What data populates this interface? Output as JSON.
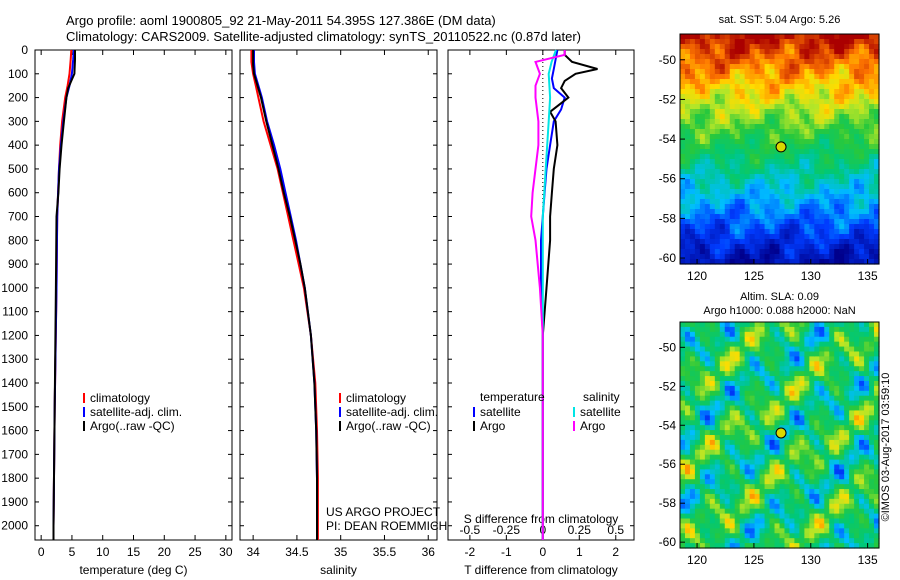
{
  "header": {
    "line1": "Argo profile: aoml 1900805_92 21-May-2011 54.395S 127.386E (DM data)",
    "line2": "Climatology: CARS2009. Satellite-adjusted climatology: synTS_20110522.nc (0.87d later)"
  },
  "colors": {
    "climatology": "#ff0000",
    "satellite": "#0000ff",
    "argo": "#000000",
    "sat_salinity": "#00e5e5",
    "argo_salinity": "#ff00ff"
  },
  "chart_data": [
    {
      "type": "line",
      "xlabel": "temperature (deg C)",
      "ylabel": "",
      "xlim": [
        -1,
        31
      ],
      "ylim": [
        2060,
        0
      ],
      "xticks": [
        "0",
        "5",
        "10",
        "15",
        "20",
        "25",
        "30"
      ],
      "xtick_values": [
        0,
        5,
        10,
        15,
        20,
        25,
        30
      ],
      "yticks": [
        "0",
        "100",
        "200",
        "300",
        "400",
        "500",
        "600",
        "700",
        "800",
        "900",
        "1000",
        "1100",
        "1200",
        "1300",
        "1400",
        "1500",
        "1600",
        "1700",
        "1800",
        "1900",
        "2000"
      ],
      "ytick_values": [
        0,
        100,
        200,
        300,
        400,
        500,
        600,
        700,
        800,
        900,
        1000,
        1100,
        1200,
        1300,
        1400,
        1500,
        1600,
        1700,
        1800,
        1900,
        2000
      ],
      "legend": [
        "climatology",
        "satellite-adj. clim.",
        "Argo(..raw -QC)"
      ],
      "legend_position": "lower-right",
      "series": [
        {
          "name": "climatology",
          "color": "red",
          "depth": [
            0,
            40,
            100,
            150,
            200,
            300,
            400,
            500,
            700,
            1000,
            1500,
            2000,
            2060
          ],
          "values": [
            4.9,
            4.8,
            4.6,
            4.3,
            3.9,
            3.4,
            3.1,
            2.9,
            2.6,
            2.5,
            2.2,
            2.0,
            2.0
          ]
        },
        {
          "name": "satellite-adj. clim.",
          "color": "blue",
          "depth": [
            0,
            40,
            100,
            150,
            200,
            300,
            400,
            500,
            700,
            1000,
            1500,
            2000,
            2060
          ],
          "values": [
            5.3,
            5.2,
            5.0,
            4.6,
            4.1,
            3.6,
            3.2,
            2.9,
            2.6,
            2.5,
            2.2,
            2.0,
            2.0
          ]
        },
        {
          "name": "Argo(..raw -QC)",
          "color": "black",
          "depth": [
            0,
            40,
            100,
            130,
            160,
            200,
            300,
            400,
            500,
            600,
            700,
            1000,
            1500,
            2000,
            2060
          ],
          "values": [
            5.5,
            5.5,
            5.4,
            4.9,
            4.4,
            4.1,
            3.7,
            3.3,
            3.0,
            2.8,
            2.5,
            2.4,
            2.2,
            2.0,
            2.0
          ]
        }
      ]
    },
    {
      "type": "line",
      "xlabel": "salinity",
      "ylabel": "",
      "xlim": [
        33.85,
        36.1
      ],
      "ylim": [
        2060,
        0
      ],
      "xticks": [
        "34",
        "34.5",
        "35",
        "35.5",
        "36"
      ],
      "xtick_values": [
        34,
        34.5,
        35,
        35.5,
        36
      ],
      "legend": [
        "climatology",
        "satellite-adj. clim.",
        "Argo(..raw -QC)"
      ],
      "legend_position": "lower-right",
      "annotations": [
        "US ARGO PROJECT",
        "PI: DEAN ROEMMICH"
      ],
      "series": [
        {
          "name": "climatology",
          "color": "red",
          "depth": [
            0,
            50,
            100,
            150,
            200,
            300,
            400,
            500,
            600,
            700,
            800,
            900,
            1000,
            1200,
            1400,
            1600,
            1800,
            2000,
            2060
          ],
          "values": [
            33.98,
            33.98,
            34.0,
            34.03,
            34.06,
            34.12,
            34.2,
            34.28,
            34.34,
            34.4,
            34.46,
            34.52,
            34.58,
            34.66,
            34.71,
            34.73,
            34.74,
            34.74,
            34.74
          ]
        },
        {
          "name": "satellite-adj. clim.",
          "color": "blue",
          "depth": [
            0,
            50,
            100,
            150,
            200,
            300,
            400,
            500,
            600,
            700,
            800,
            900,
            1000,
            1200,
            1400,
            1600,
            1800,
            2000,
            2060
          ],
          "values": [
            34.01,
            34.01,
            34.02,
            34.06,
            34.1,
            34.16,
            34.24,
            34.31,
            34.37,
            34.43,
            34.49,
            34.54,
            34.59,
            34.66,
            34.7,
            34.72,
            34.73,
            34.73,
            34.73
          ]
        },
        {
          "name": "Argo(..raw -QC)",
          "color": "black",
          "depth": [
            0,
            20,
            60,
            100,
            150,
            200,
            300,
            400,
            500,
            600,
            700,
            800,
            900,
            1000,
            1200,
            1400,
            1600,
            1800,
            2000,
            2060
          ],
          "values": [
            34.0,
            34.0,
            34.0,
            34.01,
            34.05,
            34.09,
            34.15,
            34.22,
            34.29,
            34.35,
            34.42,
            34.48,
            34.54,
            34.59,
            34.66,
            34.7,
            34.72,
            34.73,
            34.73,
            34.73
          ]
        }
      ]
    },
    {
      "type": "line",
      "xlabel": "T difference from climatology",
      "xlabel2": "S difference from climatology",
      "xlim": [
        -2.6,
        2.5
      ],
      "ylim": [
        2060,
        0
      ],
      "xticks": [
        "-2",
        "-1",
        "0",
        "1",
        "2"
      ],
      "xtick_values": [
        -2,
        -1,
        0,
        1,
        2
      ],
      "xticks_top": [
        "-0.5",
        "-0.25",
        "0",
        "0.25",
        "0.5"
      ],
      "xtick_top_values": [
        -0.5,
        -0.25,
        0,
        0.25,
        0.5
      ],
      "legend_headers": [
        "temperature",
        "salinity"
      ],
      "legend": [
        "satellite",
        "Argo",
        "satellite",
        "Argo"
      ],
      "legend_position": "lower-right",
      "series": [
        {
          "name": "temperature satellite",
          "color": "blue",
          "depth": [
            0,
            40,
            80,
            120,
            160,
            200,
            250,
            300,
            400,
            500,
            600,
            700,
            800,
            1000,
            1200,
            1500,
            2000,
            2060
          ],
          "values": [
            0.4,
            0.35,
            0.3,
            0.25,
            0.3,
            0.6,
            0.5,
            0.3,
            0.2,
            0.1,
            0.05,
            0.0,
            -0.05,
            -0.05,
            0.0,
            0.0,
            0.0,
            0.0
          ]
        },
        {
          "name": "temperature Argo",
          "color": "black",
          "depth": [
            0,
            20,
            50,
            80,
            100,
            130,
            160,
            200,
            260,
            300,
            400,
            500,
            600,
            700,
            800,
            1000,
            1200,
            1500,
            2000,
            2060
          ],
          "values": [
            0.6,
            0.6,
            0.8,
            1.5,
            0.9,
            0.6,
            0.5,
            0.7,
            0.2,
            0.35,
            0.4,
            0.3,
            0.25,
            0.2,
            0.2,
            0.1,
            0.0,
            0.0,
            0.0,
            0.0
          ]
        },
        {
          "name": "salinity satellite",
          "color": "cyan",
          "depth": [
            0,
            50,
            100,
            200,
            300,
            400,
            500,
            600,
            700,
            800,
            1000,
            1200,
            1500,
            2000,
            2060
          ],
          "values": [
            0.09,
            0.06,
            0.04,
            0.05,
            0.04,
            0.03,
            0.02,
            0.01,
            0.0,
            0.0,
            0.0,
            0.0,
            0.0,
            0.0,
            0.0
          ]
        },
        {
          "name": "salinity Argo",
          "color": "magenta",
          "depth": [
            0,
            20,
            50,
            100,
            150,
            200,
            300,
            400,
            500,
            600,
            700,
            800,
            1000,
            1200,
            1500,
            2000,
            2060
          ],
          "values": [
            0.15,
            0.15,
            -0.05,
            -0.02,
            -0.05,
            -0.05,
            -0.03,
            -0.03,
            -0.05,
            -0.07,
            -0.08,
            -0.05,
            -0.02,
            0.0,
            0.0,
            0.0,
            0.0
          ]
        }
      ]
    },
    {
      "type": "heatmap",
      "title": "sat. SST: 5.04  Argo: 5.26",
      "xticks": [
        "120",
        "125",
        "130",
        "135"
      ],
      "xtick_values": [
        120,
        125,
        130,
        135
      ],
      "yticks": [
        "-50",
        "-52",
        "-54",
        "-56",
        "-58",
        "-60"
      ],
      "ytick_values": [
        -50,
        -52,
        -54,
        -56,
        -58,
        -60
      ],
      "xlim": [
        118.5,
        136
      ],
      "ylim": [
        -60.3,
        -48.7
      ],
      "marker": {
        "lon": 127.386,
        "lat": -54.395
      }
    },
    {
      "type": "heatmap",
      "title": "Altim. SLA: 0.09",
      "subtitle": "Argo h1000: 0.088 h2000: NaN",
      "xticks": [
        "120",
        "125",
        "130",
        "135"
      ],
      "xtick_values": [
        120,
        125,
        130,
        135
      ],
      "yticks": [
        "-50",
        "-52",
        "-54",
        "-56",
        "-58",
        "-60"
      ],
      "ytick_values": [
        -50,
        -52,
        -54,
        -56,
        -58,
        -60
      ],
      "xlim": [
        118.5,
        136
      ],
      "ylim": [
        -60.3,
        -48.7
      ],
      "marker": {
        "lon": 127.386,
        "lat": -54.395
      },
      "side_label": "©IMOS 03-Aug-2017 03:59:10"
    }
  ]
}
